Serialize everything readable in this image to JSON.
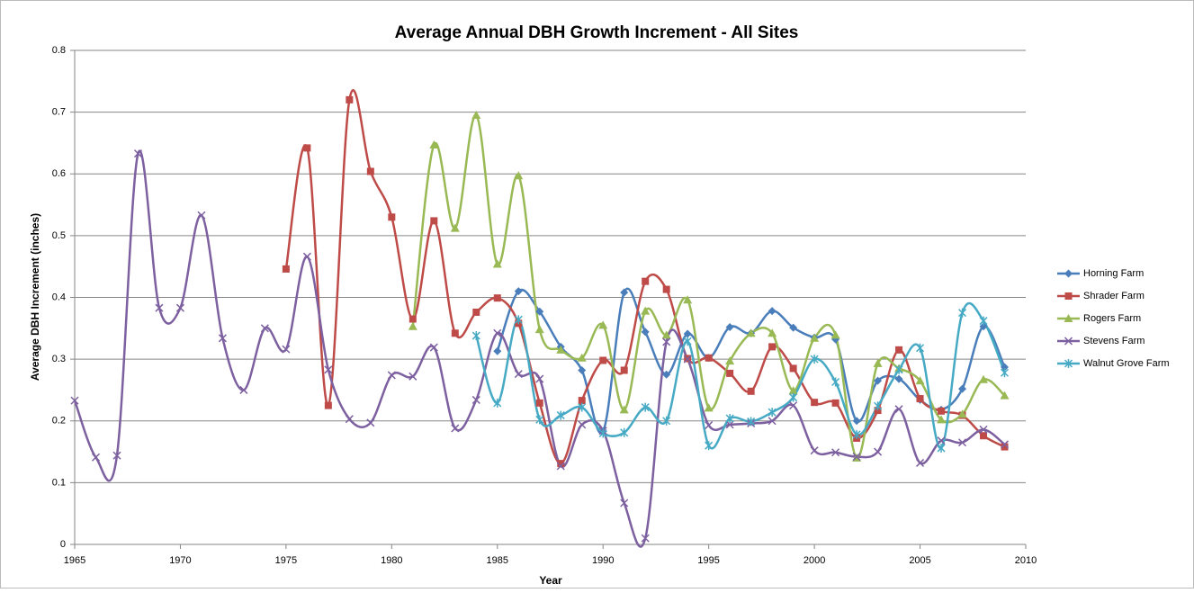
{
  "chart_data": {
    "type": "line",
    "title": "Average Annual DBH Growth Increment - All Sites",
    "x_label": "Year",
    "y_label": "Average DBH Increment (inches)",
    "x": [
      1965,
      1966,
      1967,
      1968,
      1969,
      1970,
      1971,
      1972,
      1973,
      1974,
      1975,
      1976,
      1977,
      1978,
      1979,
      1980,
      1981,
      1982,
      1983,
      1984,
      1985,
      1986,
      1987,
      1988,
      1989,
      1990,
      1991,
      1992,
      1993,
      1994,
      1995,
      1996,
      1997,
      1998,
      1999,
      2000,
      2001,
      2002,
      2003,
      2004,
      2005,
      2006,
      2007,
      2008,
      2009
    ],
    "xlim": [
      1965,
      2010
    ],
    "xticks": [
      1965,
      1970,
      1975,
      1980,
      1985,
      1990,
      1995,
      2000,
      2005,
      2010
    ],
    "ylim": [
      0,
      0.8
    ],
    "yticks": [
      0,
      0.1,
      0.2,
      0.3,
      0.4,
      0.5,
      0.6,
      0.7,
      0.8
    ],
    "grid": true,
    "smooth": true,
    "legend": "right",
    "series": [
      {
        "name": "Horning Farm",
        "color": "#4a7ebb",
        "marker": "diamond",
        "values": [
          null,
          null,
          null,
          null,
          null,
          null,
          null,
          null,
          null,
          null,
          null,
          null,
          null,
          null,
          null,
          null,
          null,
          null,
          null,
          null,
          0.313,
          0.41,
          0.377,
          0.32,
          0.282,
          0.183,
          0.408,
          0.344,
          0.275,
          0.341,
          0.302,
          0.352,
          0.342,
          0.378,
          0.351,
          0.335,
          0.332,
          0.2,
          0.265,
          0.268,
          0.234,
          0.218,
          0.252,
          0.353,
          0.287
        ]
      },
      {
        "name": "Shrader Farm",
        "color": "#be4b48",
        "marker": "square",
        "values": [
          null,
          null,
          null,
          null,
          null,
          null,
          null,
          null,
          null,
          null,
          0.446,
          0.642,
          0.225,
          0.72,
          0.604,
          0.53,
          0.365,
          0.524,
          0.342,
          0.376,
          0.399,
          0.358,
          0.229,
          0.131,
          0.233,
          0.298,
          0.282,
          0.426,
          0.413,
          0.301,
          0.302,
          0.277,
          0.248,
          0.32,
          0.285,
          0.23,
          0.229,
          0.172,
          0.217,
          0.315,
          0.236,
          0.216,
          0.209,
          0.176,
          0.158
        ]
      },
      {
        "name": "Rogers Farm",
        "color": "#98b954",
        "marker": "triangle",
        "values": [
          null,
          null,
          null,
          null,
          null,
          null,
          null,
          null,
          null,
          null,
          null,
          null,
          null,
          null,
          null,
          null,
          0.353,
          0.647,
          0.512,
          0.695,
          0.454,
          0.597,
          0.348,
          0.315,
          0.302,
          0.355,
          0.218,
          0.378,
          0.339,
          0.396,
          0.221,
          0.297,
          0.342,
          0.342,
          0.249,
          0.334,
          0.339,
          0.14,
          0.293,
          0.285,
          0.265,
          0.202,
          0.211,
          0.267,
          0.241
        ]
      },
      {
        "name": "Stevens Farm",
        "color": "#7d60a0",
        "marker": "x",
        "values": [
          0.233,
          0.141,
          0.144,
          0.633,
          0.383,
          0.383,
          0.533,
          0.334,
          0.25,
          0.35,
          0.316,
          0.466,
          0.283,
          0.203,
          0.197,
          0.274,
          0.272,
          0.319,
          0.188,
          0.234,
          0.342,
          0.276,
          0.268,
          0.127,
          0.194,
          0.184,
          0.067,
          0.01,
          0.328,
          0.3,
          0.193,
          0.194,
          0.196,
          0.2,
          0.225,
          0.152,
          0.149,
          0.142,
          0.15,
          0.219,
          0.132,
          0.168,
          0.165,
          0.186,
          0.162
        ]
      },
      {
        "name": "Walnut Grove Farm",
        "color": "#46aac5",
        "marker": "star",
        "values": [
          null,
          null,
          null,
          null,
          null,
          null,
          null,
          null,
          null,
          null,
          null,
          null,
          null,
          null,
          null,
          null,
          null,
          null,
          null,
          0.338,
          0.229,
          0.364,
          0.202,
          0.209,
          0.222,
          0.18,
          0.181,
          0.222,
          0.2,
          0.329,
          0.16,
          0.204,
          0.199,
          0.214,
          0.238,
          0.3,
          0.263,
          0.178,
          0.224,
          0.283,
          0.318,
          0.156,
          0.375,
          0.362,
          0.278
        ]
      }
    ]
  }
}
